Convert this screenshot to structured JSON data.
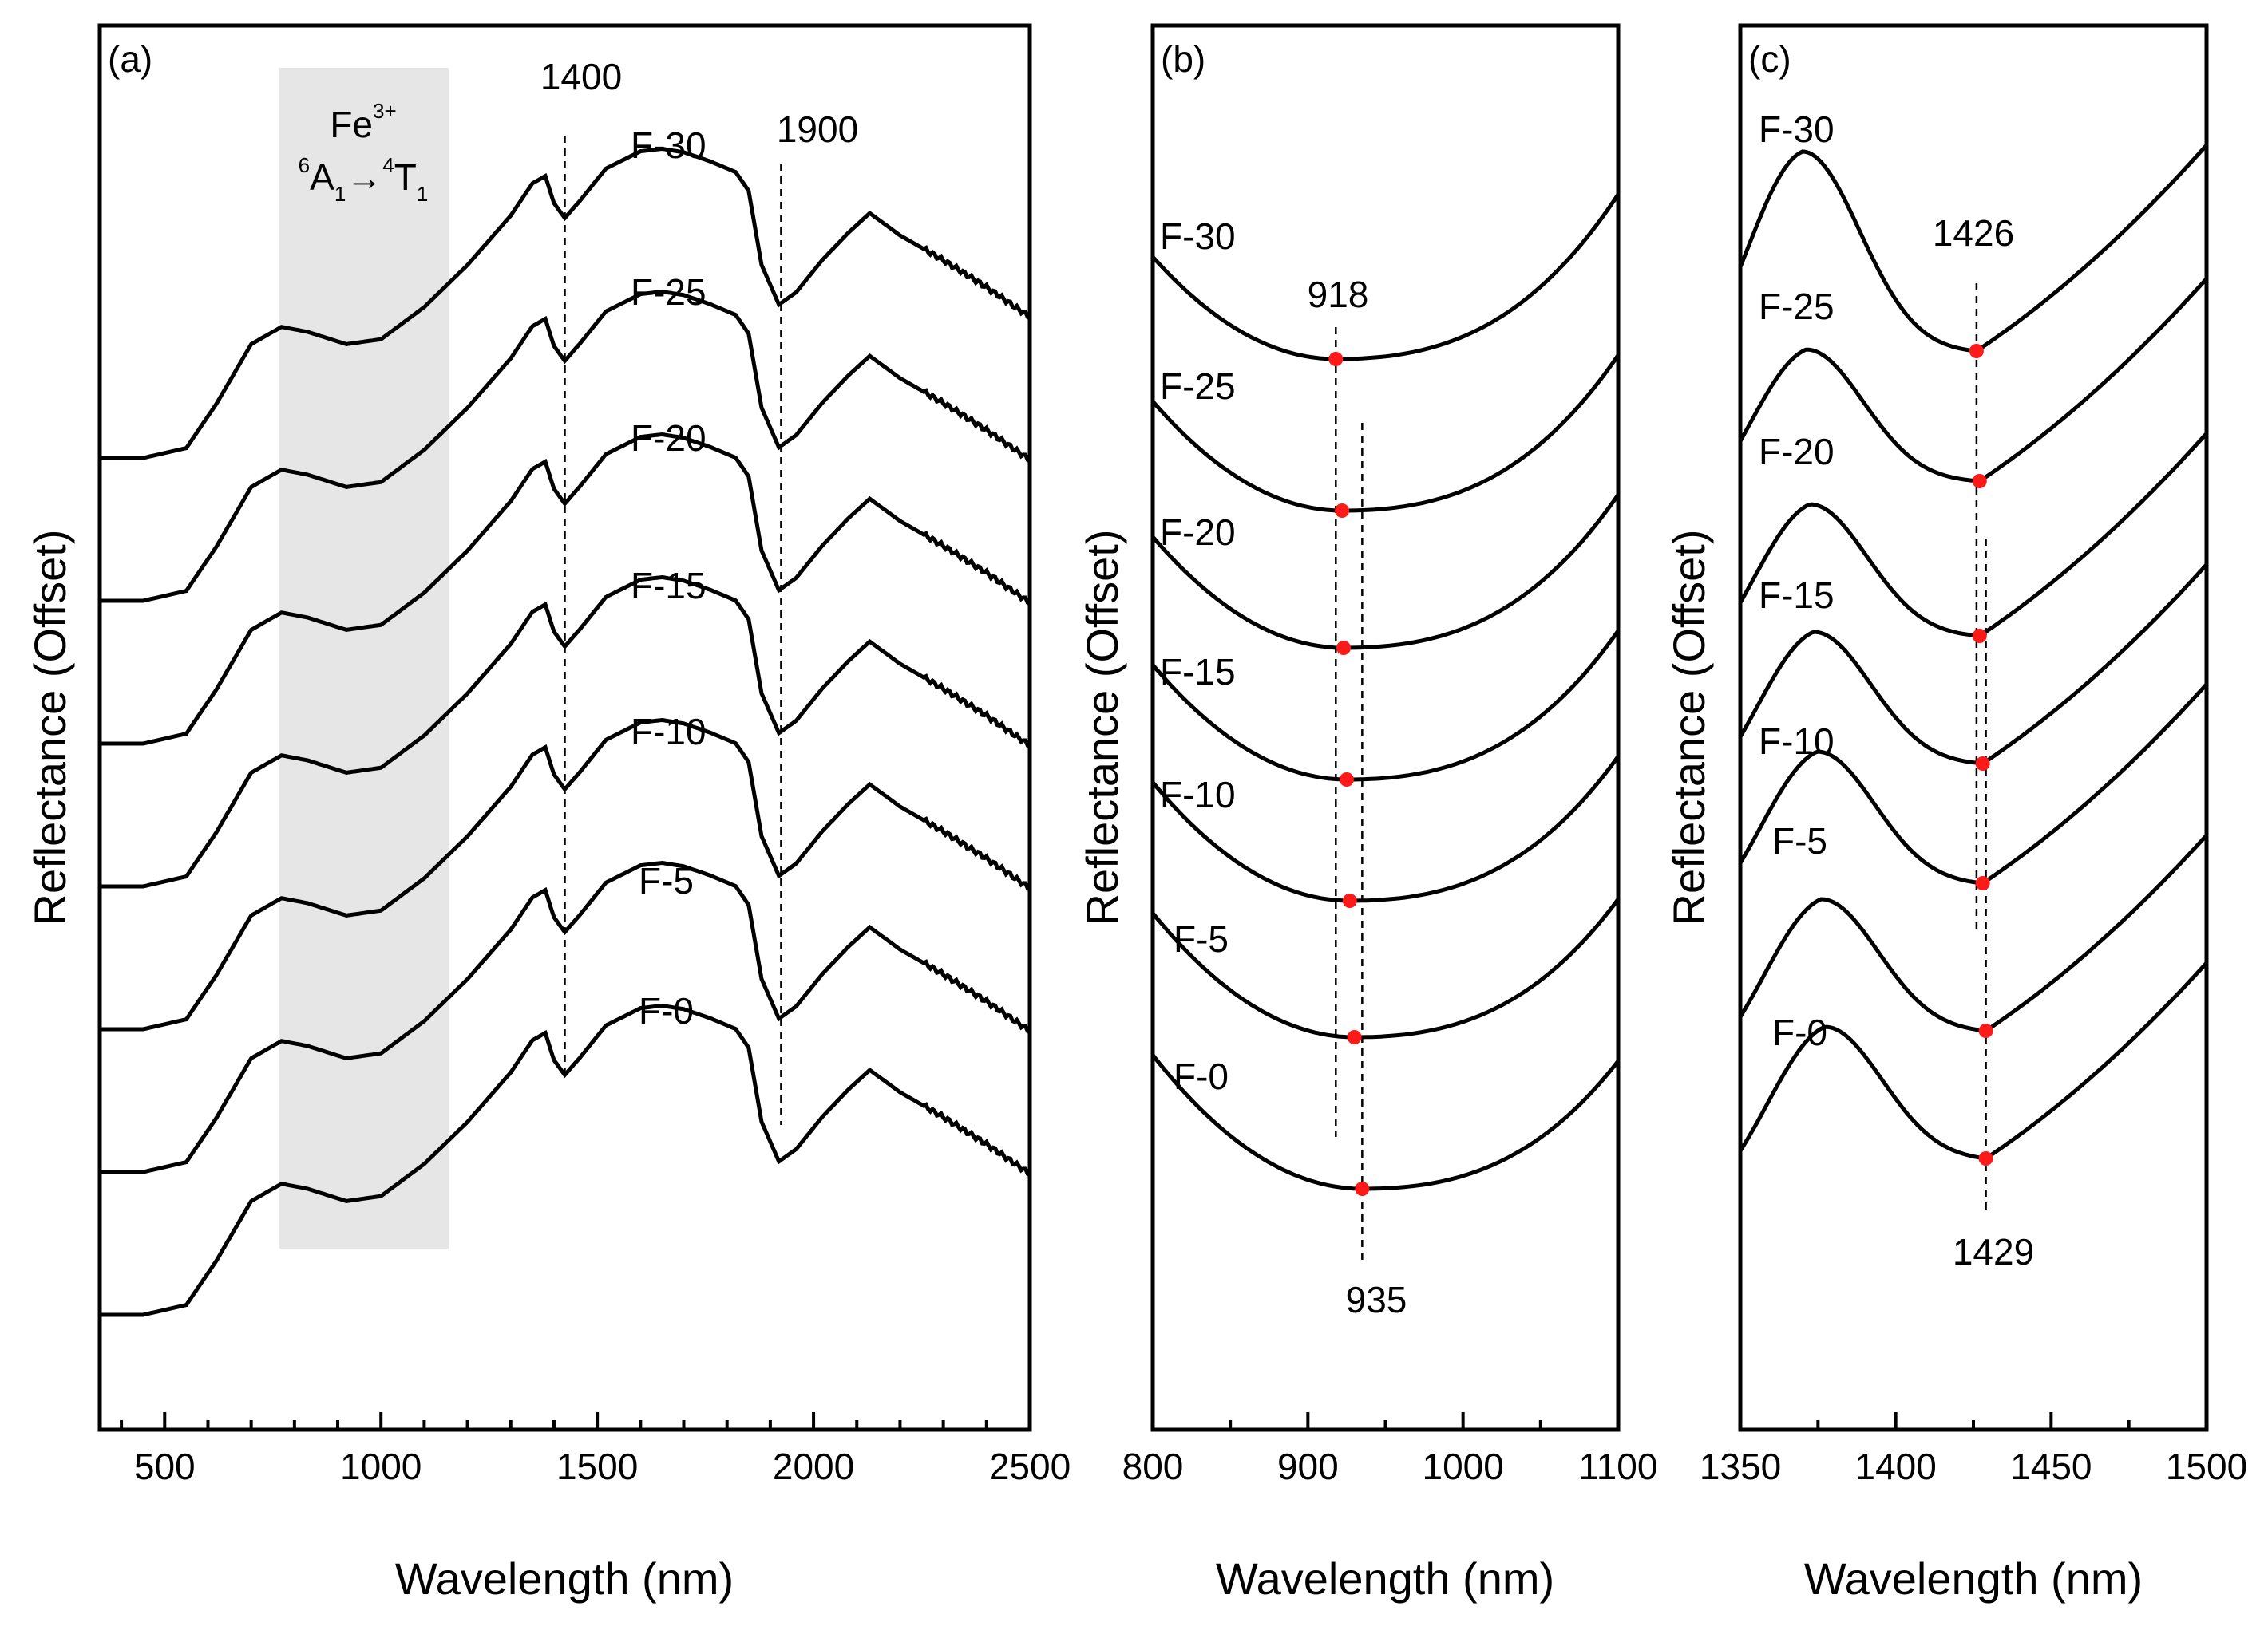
{
  "chart_data": [
    {
      "panel": "(a)",
      "type": "line",
      "xlabel": "Wavelength (nm)",
      "ylabel": "Reflectance (Offset)",
      "xlim": [
        350,
        2500
      ],
      "xticks": [
        "500",
        "1000",
        "1500",
        "2000",
        "2500"
      ],
      "shaded_region": {
        "x_range": [
          770,
          1155
        ],
        "ion": "Fe",
        "charge": "3+",
        "transition_from_sup": "6",
        "transition_from": "A",
        "transition_from_sub": "1",
        "arrow": "→",
        "transition_to_sup": "4",
        "transition_to": "T",
        "transition_to_sub": "1"
      },
      "reference_lines": [
        {
          "x": 1425,
          "label": "1400"
        },
        {
          "x": 1925,
          "label": "1900"
        }
      ],
      "series": [
        {
          "name": "F-30",
          "offset": 6
        },
        {
          "name": "F-25",
          "offset": 5
        },
        {
          "name": "F-20",
          "offset": 4
        },
        {
          "name": "F-15",
          "offset": 3
        },
        {
          "name": "F-10",
          "offset": 2
        },
        {
          "name": "F-5",
          "offset": 1
        },
        {
          "name": "F-0",
          "offset": 0
        }
      ],
      "spectrum_profile": {
        "x": [
          350,
          450,
          550,
          620,
          700,
          770,
          830,
          920,
          1000,
          1100,
          1200,
          1300,
          1350,
          1380,
          1400,
          1425,
          1460,
          1520,
          1600,
          1650,
          1700,
          1760,
          1820,
          1850,
          1880,
          1920,
          1960,
          2020,
          2080,
          2130,
          2200,
          2300,
          2400,
          2500
        ],
        "y": [
          0.0,
          0.0,
          0.2,
          1.1,
          2.3,
          2.65,
          2.55,
          2.3,
          2.4,
          3.05,
          3.9,
          4.9,
          5.55,
          5.7,
          5.15,
          4.85,
          5.2,
          5.85,
          6.2,
          6.25,
          6.18,
          6.0,
          5.78,
          5.4,
          3.9,
          3.1,
          3.35,
          4.0,
          4.55,
          4.95,
          4.5,
          4.0,
          3.45,
          2.85
        ]
      }
    },
    {
      "panel": "(b)",
      "type": "line",
      "xlabel": "Wavelength (nm)",
      "ylabel": "Reflectance (Offset)",
      "xlim": [
        800,
        1100
      ],
      "xticks": [
        "800",
        "900",
        "1000",
        "1100"
      ],
      "reference_lines": [
        {
          "x": 918,
          "label": "918"
        },
        {
          "x": 935,
          "label": "935"
        }
      ],
      "series": [
        {
          "name": "F-30",
          "minimum": 918
        },
        {
          "name": "F-25",
          "minimum": 922
        },
        {
          "name": "F-20",
          "minimum": 923
        },
        {
          "name": "F-15",
          "minimum": 925
        },
        {
          "name": "F-10",
          "minimum": 927
        },
        {
          "name": "F-5",
          "minimum": 930
        },
        {
          "name": "F-0",
          "minimum": 935
        }
      ]
    },
    {
      "panel": "(c)",
      "type": "line",
      "xlabel": "Wavelength (nm)",
      "ylabel": "Reflectance (Offset)",
      "xlim": [
        1350,
        1500
      ],
      "xticks": [
        "1350",
        "1400",
        "1450",
        "1500"
      ],
      "reference_lines": [
        {
          "x": 1426,
          "label": "1426"
        },
        {
          "x": 1429,
          "label": "1429"
        }
      ],
      "series": [
        {
          "name": "F-30",
          "minimum": 1426
        },
        {
          "name": "F-25",
          "minimum": 1427
        },
        {
          "name": "F-20",
          "minimum": 1427
        },
        {
          "name": "F-15",
          "minimum": 1428
        },
        {
          "name": "F-10",
          "minimum": 1428
        },
        {
          "name": "F-5",
          "minimum": 1429
        },
        {
          "name": "F-0",
          "minimum": 1429
        }
      ]
    }
  ]
}
